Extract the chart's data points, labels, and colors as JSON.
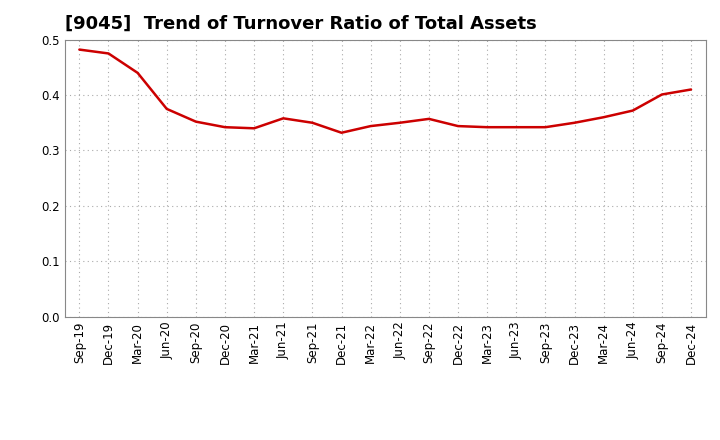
{
  "title": "[9045]  Trend of Turnover Ratio of Total Assets",
  "x_labels": [
    "Sep-19",
    "Dec-19",
    "Mar-20",
    "Jun-20",
    "Sep-20",
    "Dec-20",
    "Mar-21",
    "Jun-21",
    "Sep-21",
    "Dec-21",
    "Mar-22",
    "Jun-22",
    "Sep-22",
    "Dec-22",
    "Mar-23",
    "Jun-23",
    "Sep-23",
    "Dec-23",
    "Mar-24",
    "Jun-24",
    "Sep-24",
    "Dec-24"
  ],
  "y_values": [
    0.482,
    0.475,
    0.44,
    0.375,
    0.352,
    0.342,
    0.34,
    0.358,
    0.35,
    0.332,
    0.344,
    0.35,
    0.357,
    0.344,
    0.342,
    0.342,
    0.342,
    0.35,
    0.36,
    0.372,
    0.401,
    0.41
  ],
  "line_color": "#cc0000",
  "line_width": 1.8,
  "ylim": [
    0.0,
    0.5
  ],
  "yticks": [
    0.0,
    0.1,
    0.2,
    0.3,
    0.4,
    0.5
  ],
  "grid_color": "#aaaaaa",
  "background_color": "#ffffff",
  "title_fontsize": 13,
  "tick_fontsize": 8.5
}
